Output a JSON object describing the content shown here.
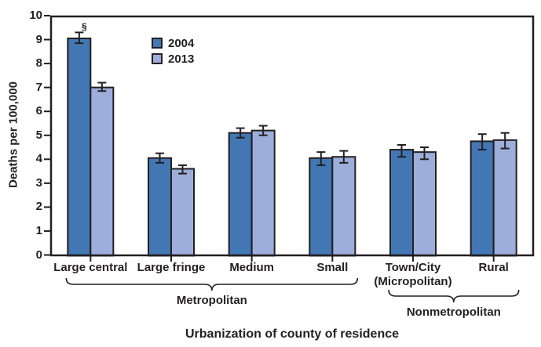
{
  "chart_data": {
    "type": "bar",
    "title": "",
    "ylabel": "Deaths per 100,000",
    "xlabel": "Urbanization of county of residence",
    "ylim": [
      0,
      10
    ],
    "yticks": [
      0,
      1,
      2,
      3,
      4,
      5,
      6,
      7,
      8,
      9,
      10
    ],
    "grid": false,
    "legend_position": "upper-left-inside",
    "categories": [
      "Large central",
      "Large fringe",
      "Medium",
      "Small",
      "Town/City\n(Micropolitan)",
      "Rural"
    ],
    "series": [
      {
        "name": "2004",
        "color": "#4377b4",
        "values": [
          9.05,
          4.05,
          5.1,
          4.05,
          4.4,
          4.75
        ],
        "error_low": [
          8.85,
          3.85,
          4.9,
          3.75,
          4.1,
          4.4
        ],
        "error_high": [
          9.3,
          4.25,
          5.3,
          4.3,
          4.6,
          5.05
        ]
      },
      {
        "name": "2013",
        "color": "#9daeda",
        "values": [
          7.0,
          3.6,
          5.2,
          4.1,
          4.3,
          4.8
        ],
        "error_low": [
          6.85,
          3.4,
          5.0,
          3.85,
          4.0,
          4.45
        ],
        "error_high": [
          7.2,
          3.75,
          5.4,
          4.35,
          4.5,
          5.1
        ]
      }
    ],
    "groups": [
      {
        "label": "Metropolitan",
        "span": [
          0,
          3
        ]
      },
      {
        "label": "Nonmetropolitan",
        "span": [
          4,
          5
        ]
      }
    ],
    "annotation": {
      "text": "§",
      "category": 0,
      "series": "2004"
    }
  },
  "colors": {
    "axis_line": "#231f20",
    "bar_2004": "#4377b4",
    "bar_2013": "#9daeda",
    "background": "#ffffff"
  }
}
